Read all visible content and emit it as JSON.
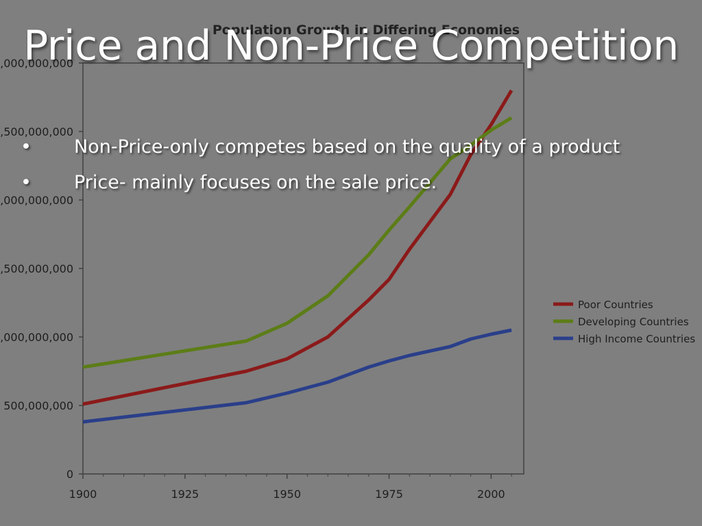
{
  "slide": {
    "title": "Price and Non-Price Competition",
    "bullets": [
      "Non-Price-only competes based on the quality of a product",
      "Price- mainly focuses on the sale price."
    ],
    "bullet_marker": "•"
  },
  "chart_data": {
    "type": "line",
    "title": "Population Growth in Differing Economies",
    "xlabel": "",
    "ylabel": "",
    "xlim": [
      1900,
      2008
    ],
    "ylim": [
      0,
      3000000000
    ],
    "xticks": [
      1900,
      1925,
      1950,
      1975,
      2000
    ],
    "yticks": [
      0,
      500000000,
      1000000000,
      1500000000,
      2000000000,
      2500000000,
      3000000000
    ],
    "ytick_labels": [
      "0",
      "500,000,000",
      ",000,000,000",
      ",500,000,000",
      ",000,000,000",
      ",500,000,000",
      ",000,000,000"
    ],
    "grid": false,
    "legend_position": "right",
    "x": [
      1900,
      1940,
      1950,
      1960,
      1970,
      1975,
      1980,
      1990,
      1995,
      2000,
      2005
    ],
    "series": [
      {
        "name": "Poor Countries",
        "color": "#8b1a1a",
        "values": [
          510000000,
          750000000,
          840000000,
          1000000000,
          1270000000,
          1420000000,
          1640000000,
          2040000000,
          2330000000,
          2550000000,
          2800000000
        ]
      },
      {
        "name": "Developing Countries",
        "color": "#5c7d17",
        "values": [
          780000000,
          970000000,
          1100000000,
          1300000000,
          1600000000,
          1780000000,
          1950000000,
          2300000000,
          2400000000,
          2510000000,
          2600000000
        ]
      },
      {
        "name": "High Income Countries",
        "color": "#2a3f8a",
        "values": [
          380000000,
          520000000,
          590000000,
          670000000,
          780000000,
          825000000,
          865000000,
          930000000,
          985000000,
          1020000000,
          1050000000
        ]
      }
    ]
  }
}
